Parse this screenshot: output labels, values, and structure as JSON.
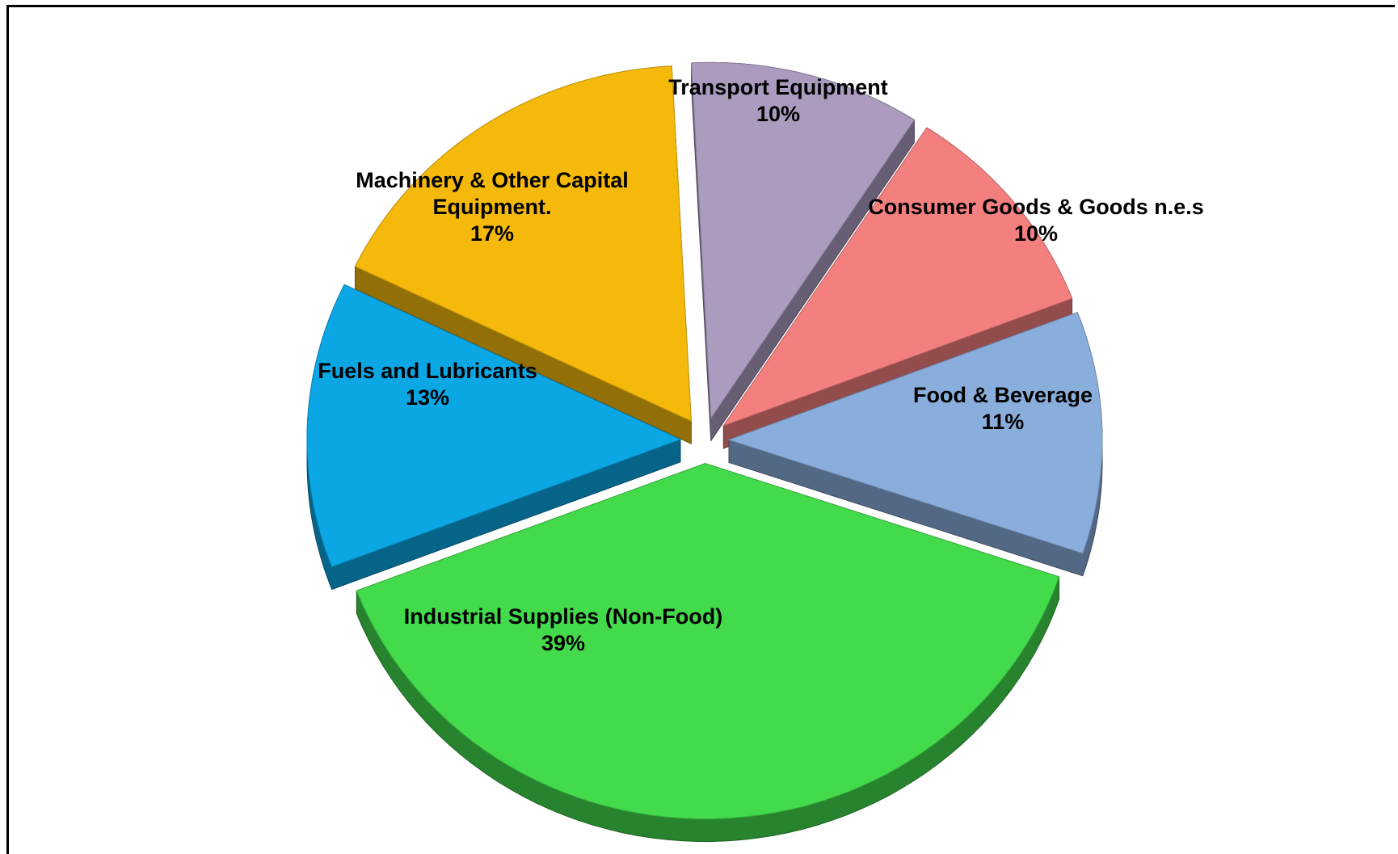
{
  "chart_data": {
    "type": "pie",
    "categories": [
      "Transport Equipment",
      "Consumer Goods & Goods n.e.s",
      "Food & Beverage",
      "Industrial Supplies (Non-Food)",
      "Fuels and Lubricants",
      "Machinery & Other Capital Equipment."
    ],
    "values": [
      10,
      10,
      11,
      39,
      13,
      17
    ],
    "value_labels": [
      "10%",
      "10%",
      "11%",
      "39%",
      "13%",
      "17%"
    ],
    "colors": [
      "#ab9cbf",
      "#f47f7f",
      "#8aaedc",
      "#43db4c",
      "#0ba7e5",
      "#f4b90b"
    ]
  }
}
